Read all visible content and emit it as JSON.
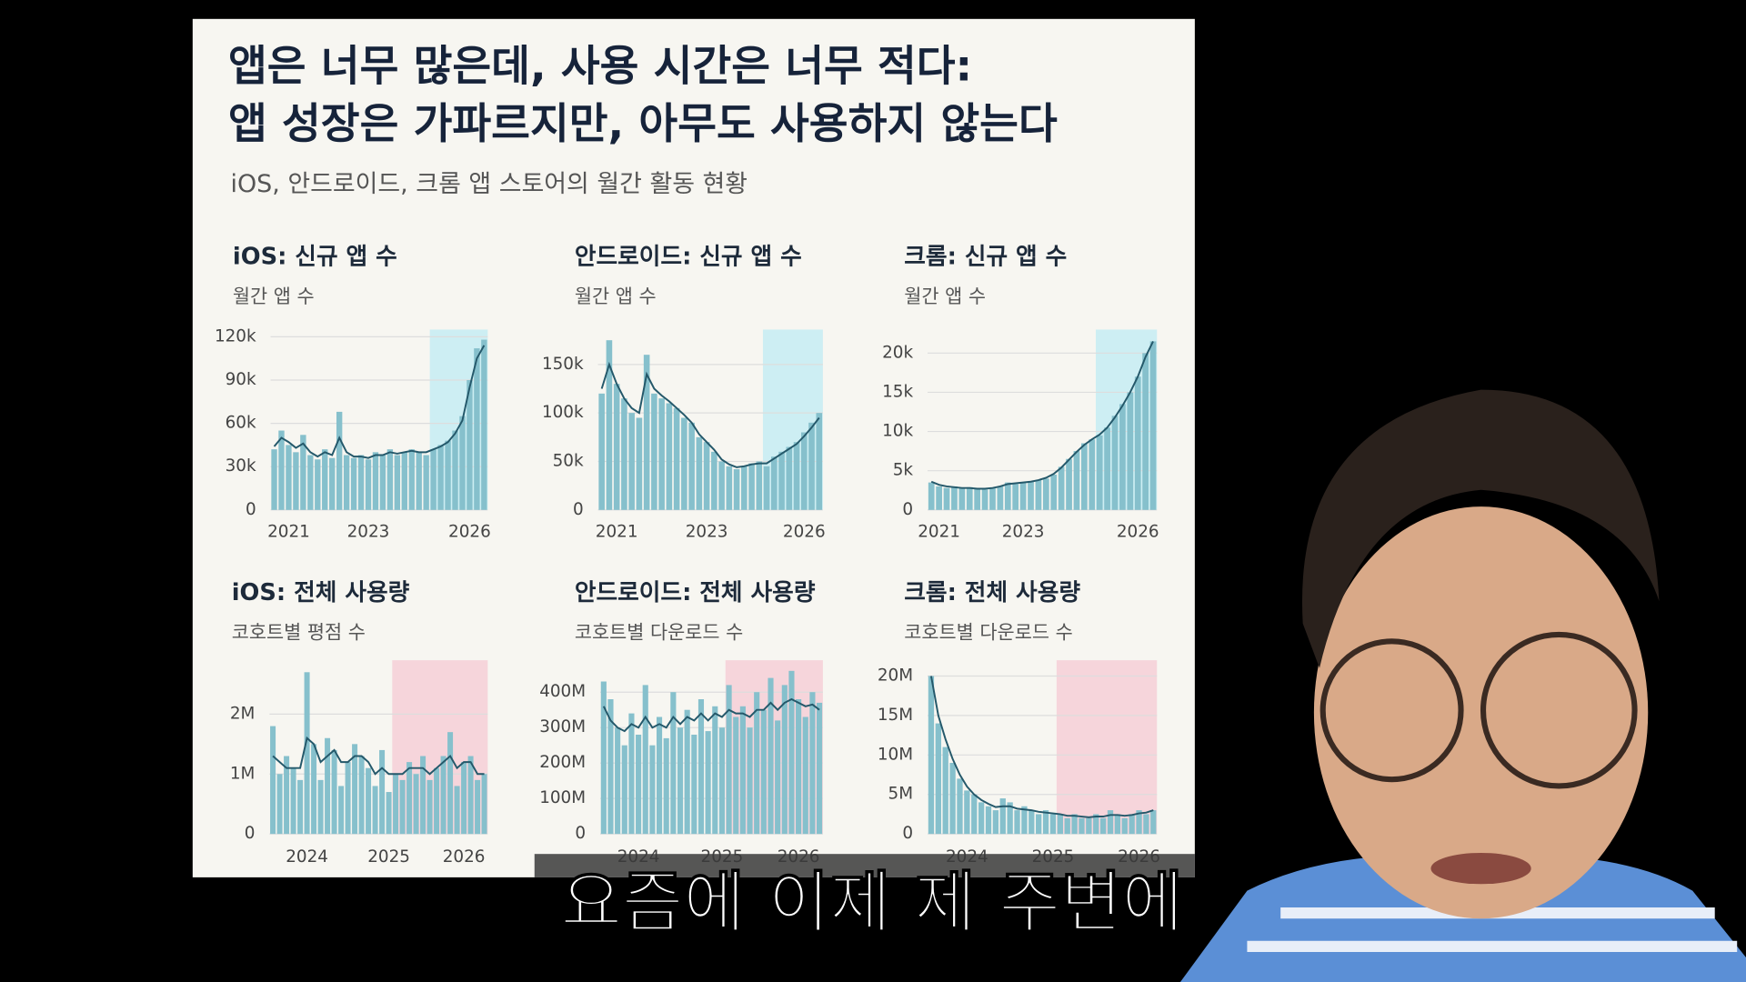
{
  "title_lines": [
    "앱은 너무 많은데, 사용 시간은 너무 적다:",
    "앱 성장은 가파르지만, 아무도 사용하지 않는다"
  ],
  "subtitle": "iOS, 안드로이드, 크롬 앱 스토어의 월간 활동 현황",
  "caption": "요즘에 이제 제 주변에",
  "chart_data": [
    {
      "type": "bar",
      "title": "iOS: 신규 앱 수",
      "subtitle": "월간 앱 수",
      "categories": [
        null,
        null,
        "2021",
        null,
        null,
        null,
        null,
        null,
        null,
        null,
        null,
        null,
        null,
        "2023",
        null,
        null,
        null,
        null,
        null,
        null,
        null,
        null,
        null,
        null,
        null,
        null,
        null,
        "2026",
        null,
        null
      ],
      "series": [
        {
          "type": "bar",
          "color": "#86c0cc",
          "values": [
            42000,
            55000,
            45000,
            40000,
            52000,
            38000,
            35000,
            42000,
            36000,
            68000,
            38000,
            36000,
            38000,
            35000,
            40000,
            38000,
            42000,
            38000,
            40000,
            42000,
            40000,
            38000,
            42000,
            45000,
            48000,
            55000,
            65000,
            90000,
            112000,
            118000
          ]
        },
        {
          "type": "line",
          "color": "#24586a",
          "values": [
            44000,
            50000,
            47000,
            43000,
            46000,
            40000,
            37000,
            40000,
            38000,
            50000,
            40000,
            37000,
            37000,
            36000,
            38000,
            38000,
            40000,
            39000,
            40000,
            41000,
            40000,
            40000,
            42000,
            44000,
            47000,
            53000,
            62000,
            85000,
            105000,
            114000
          ]
        }
      ],
      "ylim": [
        0,
        125000
      ],
      "yticks": [
        0,
        {
          "value": 30000,
          "label": "30k"
        },
        {
          "value": 60000,
          "label": "60k"
        },
        {
          "value": 90000,
          "label": "90k"
        },
        {
          "value": 120000,
          "label": "120k"
        }
      ],
      "grid": true,
      "highlight": {
        "start": 22,
        "color": "#cdeef3"
      }
    },
    {
      "type": "bar",
      "title": "안드로이드: 신규 앱 수",
      "subtitle": "월간 앱 수",
      "categories": [
        null,
        null,
        "2021",
        null,
        null,
        null,
        null,
        null,
        null,
        null,
        null,
        null,
        null,
        null,
        "2023",
        null,
        null,
        null,
        null,
        null,
        null,
        null,
        null,
        null,
        null,
        null,
        null,
        "2026",
        null,
        null
      ],
      "series": [
        {
          "type": "bar",
          "color": "#86c0cc",
          "values": [
            120000,
            175000,
            130000,
            115000,
            100000,
            95000,
            160000,
            120000,
            115000,
            110000,
            105000,
            95000,
            90000,
            75000,
            70000,
            60000,
            50000,
            45000,
            42000,
            45000,
            48000,
            50000,
            45000,
            55000,
            60000,
            65000,
            70000,
            80000,
            90000,
            100000
          ]
        },
        {
          "type": "line",
          "color": "#24586a",
          "values": [
            125000,
            150000,
            130000,
            115000,
            105000,
            100000,
            140000,
            125000,
            118000,
            112000,
            105000,
            98000,
            90000,
            78000,
            70000,
            62000,
            52000,
            47000,
            44000,
            45000,
            47000,
            48000,
            48000,
            53000,
            58000,
            63000,
            68000,
            76000,
            85000,
            95000
          ]
        }
      ],
      "ylim": [
        0,
        186000
      ],
      "yticks": [
        0,
        {
          "value": 50000,
          "label": "50k"
        },
        {
          "value": 100000,
          "label": "100k"
        },
        {
          "value": 150000,
          "label": "150k"
        }
      ],
      "grid": true,
      "highlight": {
        "start": 22,
        "color": "#cdeef3"
      }
    },
    {
      "type": "bar",
      "title": "크롬: 신규 앱 수",
      "subtitle": "월간 앱 수",
      "categories": [
        null,
        "2021",
        null,
        null,
        null,
        null,
        null,
        null,
        null,
        null,
        null,
        null,
        "2023",
        null,
        null,
        null,
        null,
        null,
        null,
        null,
        null,
        null,
        null,
        null,
        null,
        null,
        null,
        "2026",
        null,
        null
      ],
      "series": [
        {
          "type": "bar",
          "color": "#86c0cc",
          "values": [
            3500,
            3000,
            2800,
            3000,
            2800,
            2900,
            2700,
            2600,
            2800,
            3000,
            3500,
            3300,
            3500,
            3600,
            3800,
            4000,
            4500,
            5500,
            6500,
            7500,
            8500,
            9000,
            9500,
            10500,
            12000,
            13500,
            15000,
            17000,
            20000,
            21500
          ]
        },
        {
          "type": "line",
          "color": "#24586a",
          "values": [
            3600,
            3200,
            3000,
            2900,
            2800,
            2800,
            2700,
            2700,
            2800,
            3000,
            3300,
            3400,
            3500,
            3600,
            3800,
            4100,
            4600,
            5400,
            6400,
            7400,
            8300,
            9000,
            9600,
            10500,
            11800,
            13300,
            15000,
            17000,
            19500,
            21500
          ]
        }
      ],
      "ylim": [
        0,
        23000
      ],
      "yticks": [
        0,
        {
          "value": 5000,
          "label": "5k"
        },
        {
          "value": 10000,
          "label": "10k"
        },
        {
          "value": 15000,
          "label": "15k"
        },
        {
          "value": 20000,
          "label": "20k"
        }
      ],
      "grid": true,
      "highlight": {
        "start": 22,
        "color": "#cdeef3"
      }
    },
    {
      "type": "bar",
      "title": "iOS: 전체 사용량",
      "subtitle": "코호트별 평점 수",
      "categories": [
        null,
        null,
        null,
        null,
        null,
        "2024",
        null,
        null,
        null,
        null,
        null,
        null,
        null,
        null,
        null,
        null,
        null,
        "2025",
        null,
        null,
        null,
        null,
        null,
        null,
        null,
        null,
        null,
        null,
        "2026",
        null,
        null,
        null
      ],
      "series": [
        {
          "type": "bar",
          "color": "#86c0cc",
          "values": [
            1800000,
            1000000,
            1300000,
            1100000,
            900000,
            2700000,
            1500000,
            900000,
            1600000,
            1400000,
            800000,
            1200000,
            1500000,
            1300000,
            1100000,
            800000,
            1400000,
            700000,
            1000000,
            900000,
            1200000,
            1000000,
            1300000,
            900000,
            1100000,
            1300000,
            1700000,
            800000,
            1200000,
            1300000,
            900000,
            1000000
          ]
        },
        {
          "type": "line",
          "color": "#24586a",
          "values": [
            1300000,
            1200000,
            1100000,
            1100000,
            1100000,
            1600000,
            1500000,
            1200000,
            1300000,
            1400000,
            1200000,
            1200000,
            1300000,
            1300000,
            1200000,
            1000000,
            1100000,
            1000000,
            1000000,
            1000000,
            1100000,
            1100000,
            1100000,
            1000000,
            1100000,
            1200000,
            1300000,
            1100000,
            1200000,
            1200000,
            1000000,
            1000000
          ]
        }
      ],
      "ylim": [
        0,
        2900000
      ],
      "yticks": [
        0,
        {
          "value": 1000000,
          "label": "1M"
        },
        {
          "value": 2000000,
          "label": "2M"
        }
      ],
      "grid": true,
      "highlight": {
        "start": 18,
        "color": "#f6d5db"
      }
    },
    {
      "type": "bar",
      "title": "안드로이드: 전체 사용량",
      "subtitle": "코호트별 다운로드 수",
      "categories": [
        null,
        null,
        null,
        null,
        null,
        "2024",
        null,
        null,
        null,
        null,
        null,
        null,
        null,
        null,
        null,
        null,
        null,
        "2025",
        null,
        null,
        null,
        null,
        null,
        null,
        null,
        null,
        null,
        null,
        "2026",
        null,
        null,
        null
      ],
      "series": [
        {
          "type": "bar",
          "color": "#86c0cc",
          "values": [
            430000000,
            380000000,
            300000000,
            250000000,
            340000000,
            280000000,
            420000000,
            250000000,
            330000000,
            270000000,
            400000000,
            300000000,
            350000000,
            280000000,
            380000000,
            290000000,
            360000000,
            300000000,
            420000000,
            330000000,
            360000000,
            300000000,
            400000000,
            350000000,
            440000000,
            320000000,
            420000000,
            460000000,
            380000000,
            330000000,
            400000000,
            370000000
          ]
        },
        {
          "type": "line",
          "color": "#24586a",
          "values": [
            360000000,
            320000000,
            300000000,
            290000000,
            310000000,
            300000000,
            330000000,
            300000000,
            310000000,
            300000000,
            330000000,
            310000000,
            330000000,
            320000000,
            340000000,
            320000000,
            340000000,
            330000000,
            350000000,
            340000000,
            340000000,
            330000000,
            350000000,
            350000000,
            370000000,
            350000000,
            370000000,
            380000000,
            370000000,
            360000000,
            365000000,
            350000000
          ]
        }
      ],
      "ylim": [
        0,
        490000000
      ],
      "yticks": [
        0,
        {
          "value": 100000000,
          "label": "100M"
        },
        {
          "value": 200000000,
          "label": "200M"
        },
        {
          "value": 300000000,
          "label": "300M"
        },
        {
          "value": 400000000,
          "label": "400M"
        }
      ],
      "grid": true,
      "highlight": {
        "start": 18,
        "color": "#f6d5db"
      }
    },
    {
      "type": "bar",
      "title": "크롬: 전체 사용량",
      "subtitle": "코호트별 다운로드 수",
      "categories": [
        null,
        null,
        null,
        null,
        null,
        "2024",
        null,
        null,
        null,
        null,
        null,
        null,
        null,
        null,
        null,
        null,
        null,
        "2025",
        null,
        null,
        null,
        null,
        null,
        null,
        null,
        null,
        null,
        null,
        null,
        "2026",
        null,
        null
      ],
      "series": [
        {
          "type": "bar",
          "color": "#86c0cc",
          "values": [
            20000000,
            14000000,
            11000000,
            9000000,
            7000000,
            5500000,
            5000000,
            4000000,
            3500000,
            3000000,
            4500000,
            4000000,
            3000000,
            3500000,
            3000000,
            2500000,
            3000000,
            2500000,
            2500000,
            2000000,
            2500000,
            2000000,
            2000000,
            2500000,
            2000000,
            3000000,
            2500000,
            2000000,
            2500000,
            3000000,
            2500000,
            3000000
          ]
        },
        {
          "type": "line",
          "color": "#24586a",
          "values": [
            20000000,
            15000000,
            12000000,
            9500000,
            7500000,
            6000000,
            5000000,
            4300000,
            3800000,
            3400000,
            3500000,
            3500000,
            3200000,
            3100000,
            3000000,
            2800000,
            2700000,
            2600000,
            2500000,
            2300000,
            2300000,
            2200000,
            2100000,
            2200000,
            2200000,
            2400000,
            2400000,
            2300000,
            2400000,
            2600000,
            2700000,
            3000000
          ]
        }
      ],
      "ylim": [
        0,
        22000000
      ],
      "yticks": [
        0,
        {
          "value": 5000000,
          "label": "5M"
        },
        {
          "value": 10000000,
          "label": "10M"
        },
        {
          "value": 15000000,
          "label": "15M"
        },
        {
          "value": 20000000,
          "label": "20M"
        }
      ],
      "grid": true,
      "highlight": {
        "start": 18,
        "color": "#f6d5db"
      }
    }
  ]
}
